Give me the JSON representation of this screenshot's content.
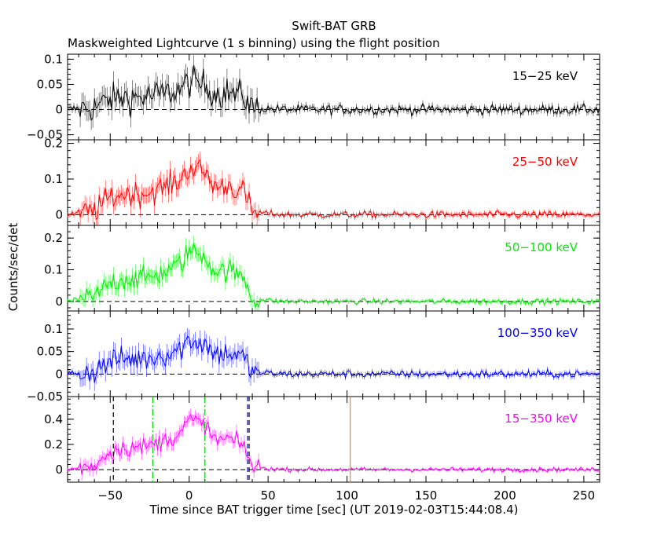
{
  "chart_data": {
    "type": "line",
    "title": "Swift-BAT GRB",
    "subtitle": "Maskweighted Lightcurve (1 s binning) using the flight position",
    "xlabel": "Time since BAT trigger time [sec] (UT 2019-02-03T15:44:08.4)",
    "ylabel": "Counts/sec/det",
    "xlim": [
      -77,
      260
    ],
    "x_ticks": [
      -50,
      0,
      50,
      100,
      150,
      200,
      250
    ],
    "x_tick_labels": [
      "−50",
      "0",
      "50",
      "100",
      "150",
      "200",
      "250"
    ],
    "burst_profile": {
      "t": [
        -77,
        -60,
        -50,
        -40,
        -30,
        -20,
        -10,
        -5,
        0,
        5,
        10,
        15,
        20,
        25,
        30,
        35,
        38,
        40,
        50,
        60,
        260
      ],
      "level": [
        0.0,
        0.08,
        0.35,
        0.42,
        0.42,
        0.5,
        0.62,
        0.72,
        0.95,
        0.9,
        0.85,
        0.6,
        0.55,
        0.6,
        0.5,
        0.45,
        0.2,
        0.05,
        0.02,
        0.0,
        0.0
      ]
    },
    "panels": [
      {
        "band": "15−25 keV",
        "color": "#000000",
        "ylim": [
          -0.06,
          0.11
        ],
        "y_ticks": [
          -0.05,
          0,
          0.05,
          0.1
        ],
        "y_tick_labels": [
          "−0.05",
          "0",
          "0.05",
          "0.1"
        ],
        "peak": 0.058,
        "noise_burst": 0.022,
        "noise_quiet": 0.007
      },
      {
        "band": "25−50 keV",
        "color": "#ff0000",
        "ylim": [
          -0.03,
          0.21
        ],
        "y_ticks": [
          0,
          0.1,
          0.2
        ],
        "y_tick_labels": [
          "0",
          "0.1",
          "0.2"
        ],
        "peak": 0.14,
        "noise_burst": 0.025,
        "noise_quiet": 0.007
      },
      {
        "band": "50−100 keV",
        "color": "#00ee00",
        "ylim": [
          -0.03,
          0.24
        ],
        "y_ticks": [
          0,
          0.1,
          0.2
        ],
        "y_tick_labels": [
          "0",
          "0.1",
          "0.2"
        ],
        "peak": 0.17,
        "noise_burst": 0.025,
        "noise_quiet": 0.006
      },
      {
        "band": "100−350 keV",
        "color": "#0000ff",
        "ylim": [
          -0.05,
          0.14
        ],
        "y_ticks": [
          -0.05,
          0,
          0.05,
          0.1
        ],
        "y_tick_labels": [
          "−0.05",
          "0",
          "0.05",
          "0.1"
        ],
        "peak": 0.08,
        "noise_burst": 0.02,
        "noise_quiet": 0.006
      },
      {
        "band": "15−350 keV",
        "color": "#ff00ff",
        "ylim": [
          -0.1,
          0.58
        ],
        "y_ticks": [
          0,
          0.2,
          0.4
        ],
        "y_tick_labels": [
          "0",
          "0.2",
          "0.4"
        ],
        "peak": 0.42,
        "noise_burst": 0.05,
        "noise_quiet": 0.012
      }
    ],
    "markers": [
      {
        "x": -48,
        "color": "#000000",
        "style": "dashed"
      },
      {
        "x": -23,
        "color": "#00cc00",
        "style": "dashdot"
      },
      {
        "x": 10,
        "color": "#00cc00",
        "style": "dashdot"
      },
      {
        "x": 37,
        "color": "#0000cc",
        "style": "dashed"
      },
      {
        "x": 38,
        "color": "#000000",
        "style": "dashed"
      },
      {
        "x": 102,
        "color": "#ff8800",
        "style": "solid"
      }
    ]
  }
}
